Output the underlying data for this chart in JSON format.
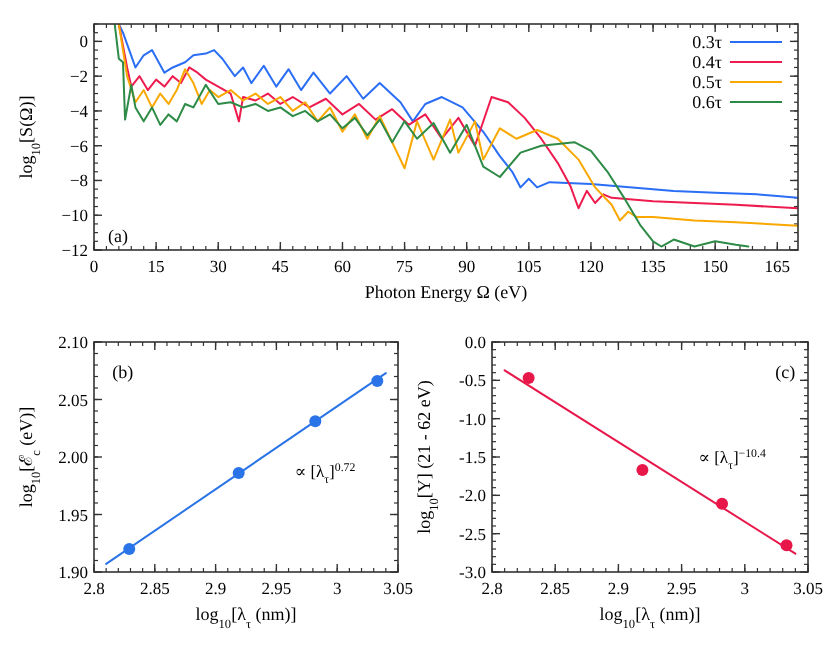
{
  "chart_data": [
    {
      "type": "line",
      "xlabel": "Photon Energy Ω (eV)",
      "ylabel": "log$_{10}$[S(Ω)]",
      "xlim": [
        0,
        170
      ],
      "xticks": [
        0,
        15,
        30,
        45,
        60,
        75,
        90,
        105,
        120,
        135,
        150,
        165
      ],
      "ylim": [
        -12,
        1
      ],
      "yticks": [
        {
          "value": -12,
          "label": "−12"
        },
        {
          "value": -10,
          "label": "−10"
        },
        {
          "value": -8,
          "label": "−8"
        },
        {
          "value": -6,
          "label": "−6"
        },
        {
          "value": -4,
          "label": "−4"
        },
        {
          "value": -2,
          "label": "−2"
        },
        0
      ],
      "legend": "top right",
      "annotations": [
        "(a)"
      ],
      "series": [
        {
          "name": "0.3τ",
          "color": "#2a6ef5",
          "x": [
            6,
            7,
            10,
            12,
            14,
            17,
            19,
            22,
            24,
            27,
            29,
            31,
            34,
            36,
            38,
            41,
            44,
            47,
            50,
            53,
            57,
            61,
            65,
            69,
            74,
            77,
            80,
            84,
            89,
            94,
            98,
            101,
            103,
            105,
            107,
            110,
            120,
            130,
            140,
            150,
            160,
            170
          ],
          "values": [
            1,
            0.5,
            -1.5,
            -0.8,
            -0.5,
            -1.8,
            -1.5,
            -1.2,
            -0.8,
            -0.7,
            -0.5,
            -1.0,
            -2.0,
            -1.5,
            -2.4,
            -1.4,
            -2.6,
            -1.6,
            -2.8,
            -1.8,
            -3.0,
            -2.0,
            -3.3,
            -2.4,
            -3.5,
            -4.6,
            -3.6,
            -3.2,
            -3.8,
            -5.2,
            -6.6,
            -7.5,
            -8.4,
            -7.9,
            -8.4,
            -8.1,
            -8.2,
            -8.4,
            -8.6,
            -8.7,
            -8.8,
            -9.0
          ]
        },
        {
          "name": "0.4τ",
          "color": "#ee1c4e",
          "x": [
            6,
            8,
            9,
            11,
            13,
            15,
            17,
            19,
            21,
            23,
            25,
            27,
            30,
            33,
            35,
            36,
            39,
            42,
            45,
            48,
            52,
            56,
            60,
            64,
            68,
            72,
            76,
            80,
            84,
            88,
            92,
            96,
            100,
            104,
            108,
            112,
            115,
            117,
            119,
            121,
            123,
            125,
            135,
            145,
            155,
            170
          ],
          "values": [
            1,
            -1.5,
            -2.6,
            -2.0,
            -2.8,
            -2.2,
            -2.6,
            -2.0,
            -2.4,
            -1.5,
            -1.8,
            -2.2,
            -2.6,
            -3.0,
            -4.6,
            -3.2,
            -3.4,
            -3.0,
            -3.6,
            -3.2,
            -3.8,
            -3.3,
            -4.2,
            -3.6,
            -4.5,
            -3.9,
            -4.8,
            -4.2,
            -5.6,
            -4.4,
            -6.0,
            -3.2,
            -3.5,
            -4.4,
            -5.6,
            -7.0,
            -8.3,
            -9.6,
            -8.6,
            -9.3,
            -8.8,
            -9.0,
            -9.2,
            -9.3,
            -9.4,
            -9.6
          ]
        },
        {
          "name": "0.5τ",
          "color": "#f9a800",
          "x": [
            6,
            7,
            8,
            10,
            12,
            14,
            16,
            18,
            20,
            22,
            24,
            26,
            28,
            30,
            33,
            36,
            39,
            42,
            45,
            48,
            51,
            54,
            57,
            60,
            63,
            66,
            69,
            72,
            75,
            78,
            82,
            86,
            88,
            92,
            94,
            98,
            102,
            107,
            112,
            117,
            121,
            125,
            127,
            129,
            131,
            135,
            145,
            155,
            170
          ],
          "values": [
            1,
            -0.5,
            -2.0,
            -3.5,
            -2.8,
            -3.8,
            -3.0,
            -3.6,
            -2.8,
            -1.6,
            -2.4,
            -3.6,
            -2.8,
            -3.2,
            -2.8,
            -3.4,
            -3.0,
            -3.6,
            -3.2,
            -4.0,
            -3.5,
            -4.6,
            -3.8,
            -5.2,
            -4.2,
            -5.6,
            -4.3,
            -5.8,
            -7.3,
            -4.6,
            -6.8,
            -4.5,
            -6.4,
            -4.6,
            -6.8,
            -5.0,
            -5.6,
            -5.1,
            -5.6,
            -6.8,
            -8.4,
            -9.4,
            -10.3,
            -9.8,
            -10.1,
            -10.1,
            -10.3,
            -10.4,
            -10.6
          ]
        },
        {
          "name": "0.6τ",
          "color": "#2e8b47",
          "x": [
            5,
            6,
            7,
            7.5,
            9,
            10,
            12,
            14,
            16,
            18,
            20,
            22,
            24,
            27,
            30,
            33,
            36,
            39,
            42,
            45,
            48,
            51,
            54,
            57,
            60,
            63,
            66,
            69,
            72,
            75,
            78,
            82,
            86,
            90,
            94,
            98,
            103,
            108,
            112,
            116,
            120,
            124,
            128,
            132,
            135,
            137,
            140,
            145,
            150,
            155,
            158
          ],
          "values": [
            1,
            -1.0,
            -1.2,
            -4.5,
            -2.5,
            -3.8,
            -4.6,
            -3.8,
            -4.8,
            -4.2,
            -4.6,
            -3.6,
            -3.8,
            -2.5,
            -3.6,
            -3.5,
            -3.8,
            -3.6,
            -4.0,
            -3.8,
            -4.3,
            -4.0,
            -4.6,
            -4.2,
            -5.0,
            -4.4,
            -5.4,
            -4.5,
            -5.8,
            -4.6,
            -5.6,
            -4.7,
            -6.4,
            -4.8,
            -7.2,
            -7.8,
            -6.4,
            -6.0,
            -5.9,
            -5.8,
            -6.3,
            -7.5,
            -9.0,
            -10.6,
            -11.5,
            -11.8,
            -11.4,
            -11.8,
            -11.5,
            -11.7,
            -11.8
          ]
        }
      ]
    },
    {
      "type": "scatter",
      "xlabel": "log$_{10}$[λ$_{τ}$ (nm)]",
      "ylabel": "log$_{10}$[ℰ$_{c}$ (eV)]",
      "xlim": [
        2.8,
        3.05
      ],
      "xticks": [
        2.8,
        2.85,
        2.9,
        2.95,
        {
          "value": 3,
          "label": "3"
        },
        3.05
      ],
      "ylim": [
        1.9,
        2.1
      ],
      "yticks": [
        {
          "value": 1.9,
          "label": "1.90"
        },
        1.95,
        {
          "value": 2.0,
          "label": "2.00"
        },
        2.05,
        {
          "value": 2.1,
          "label": "2.10"
        }
      ],
      "marker": "circle",
      "annotations": [
        "(b)",
        "∝ [λ$_{τ}$]$^{0.72}$"
      ],
      "series": [
        {
          "color": "#2a74e8",
          "x": [
            2.829,
            2.919,
            2.982,
            3.033
          ],
          "values": [
            1.92,
            1.986,
            2.031,
            2.066
          ]
        },
        {
          "type": "line",
          "marker": "none",
          "color": "#2a74e8",
          "x": [
            2.81,
            3.04
          ],
          "values": [
            1.907,
            2.073
          ]
        }
      ]
    },
    {
      "type": "scatter",
      "xlabel": "log$_{10}$[λ$_{τ}$ (nm)]",
      "ylabel": "log$_{10}$[Y] (21 - 62 eV)",
      "xlim": [
        2.8,
        3.05
      ],
      "xticks": [
        2.8,
        2.85,
        2.9,
        2.95,
        {
          "value": 3,
          "label": "3"
        },
        3.05
      ],
      "ylim": [
        -3.0,
        0.0
      ],
      "yticks": [
        {
          "value": -3.0,
          "label": "-3.0"
        },
        {
          "value": -2.5,
          "label": "-2.5"
        },
        {
          "value": -2.0,
          "label": "-2.0"
        },
        {
          "value": -1.5,
          "label": "-1.5"
        },
        {
          "value": -1.0,
          "label": "-1.0"
        },
        {
          "value": -0.5,
          "label": "-0.5"
        },
        {
          "value": 0.0,
          "label": "0.0"
        }
      ],
      "marker": "circle",
      "annotations": [
        "(c)",
        "∝ [λ$_{τ}$]$^{−10.4}$"
      ],
      "series": [
        {
          "color": "#e8174a",
          "x": [
            2.829,
            2.919,
            2.982,
            3.033
          ],
          "values": [
            -0.47,
            -1.67,
            -2.11,
            -2.65
          ]
        },
        {
          "type": "line",
          "marker": "none",
          "color": "#e8174a",
          "x": [
            2.81,
            3.04
          ],
          "values": [
            -0.37,
            -2.76
          ]
        }
      ]
    }
  ]
}
